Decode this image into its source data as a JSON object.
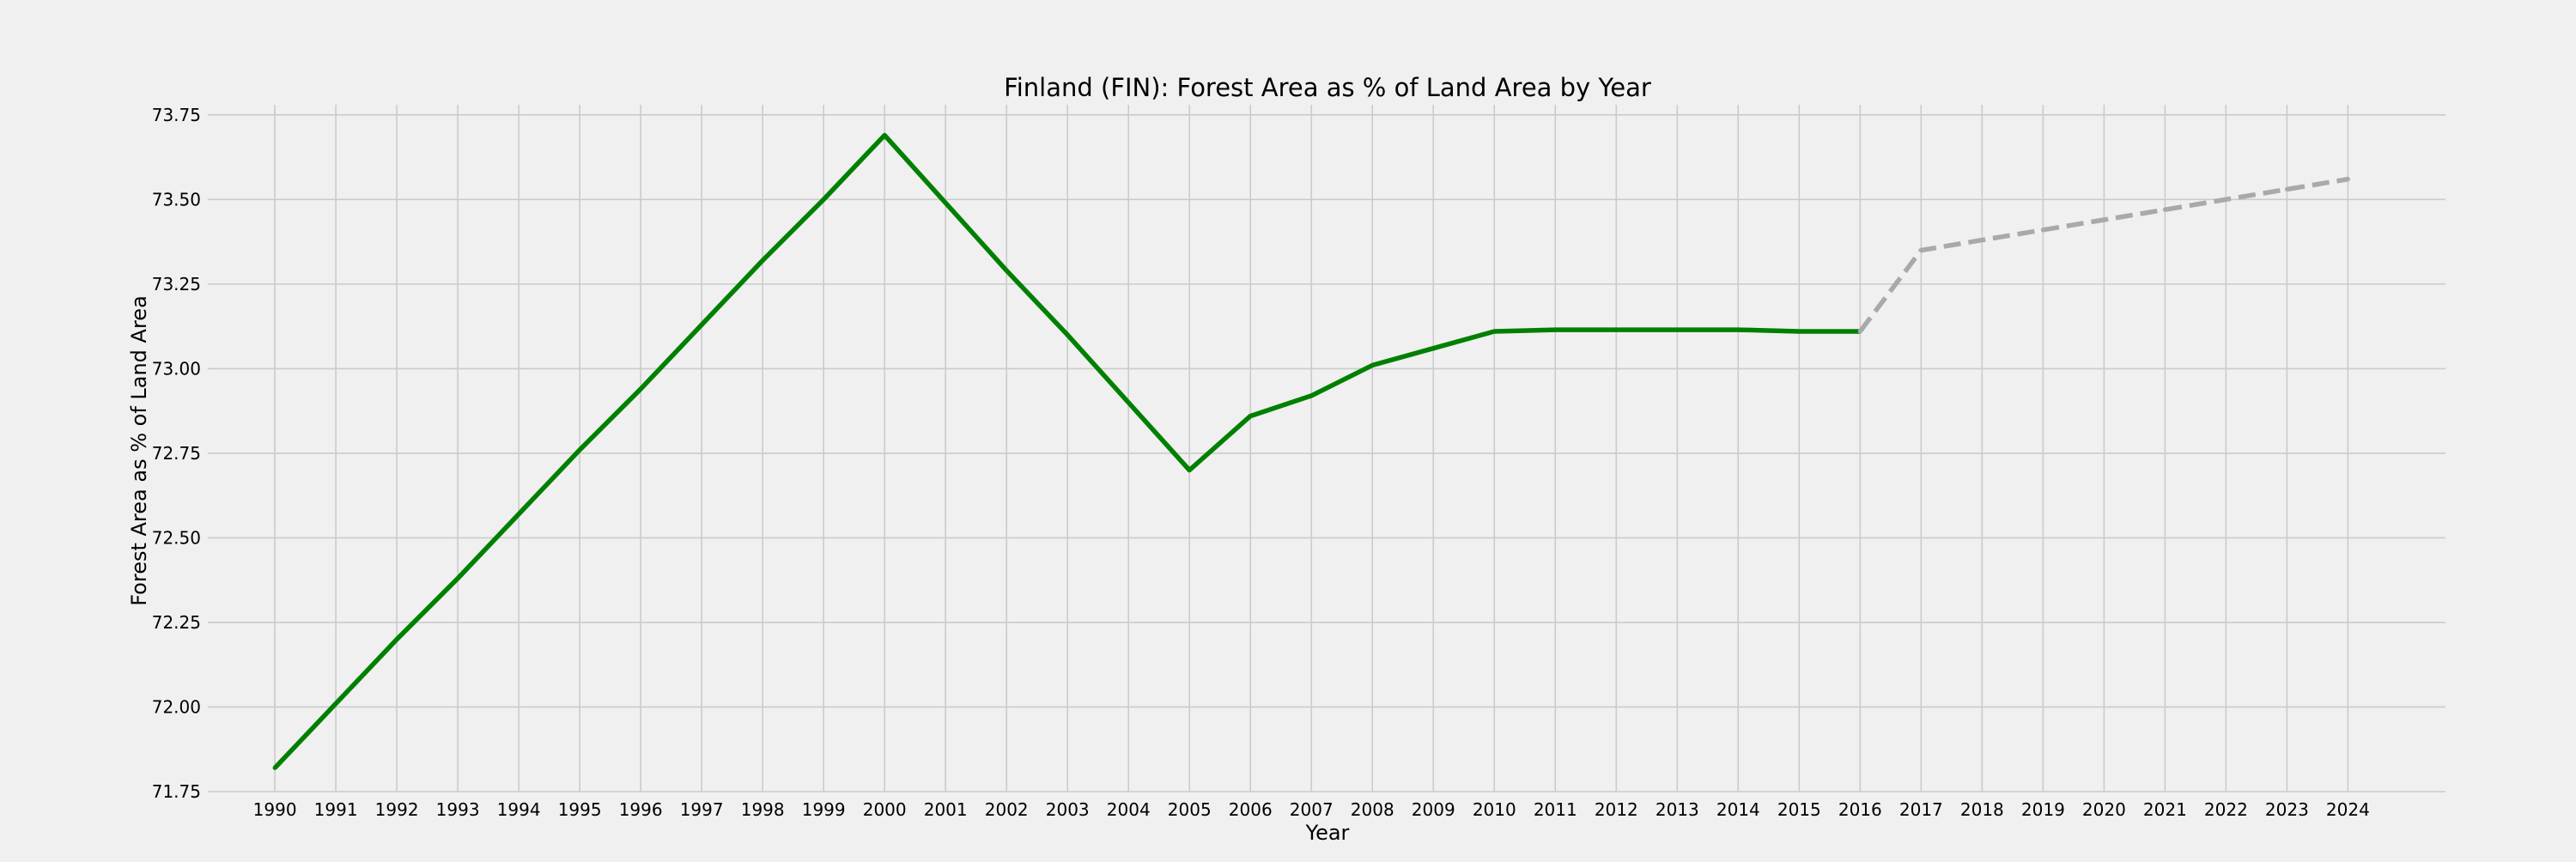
{
  "chart_data": {
    "type": "line",
    "title": "Finland (FIN): Forest Area as % of Land Area by Year",
    "xlabel": "Year",
    "ylabel": "Forest Area as % of Land Area",
    "x": [
      1990,
      1991,
      1992,
      1993,
      1994,
      1995,
      1996,
      1997,
      1998,
      1999,
      2000,
      2001,
      2002,
      2003,
      2004,
      2005,
      2006,
      2007,
      2008,
      2009,
      2010,
      2011,
      2012,
      2013,
      2014,
      2015,
      2016,
      2017,
      2018,
      2019,
      2020,
      2021,
      2022,
      2023,
      2024
    ],
    "xlim": [
      1988.9,
      2025.6
    ],
    "ylim": [
      71.75,
      73.78
    ],
    "yticks": [
      "71.75",
      "72.00",
      "72.25",
      "72.50",
      "72.75",
      "73.00",
      "73.25",
      "73.50",
      "73.75"
    ],
    "grid": true,
    "series": [
      {
        "kind": "observed",
        "color": "#008000",
        "style": "solid",
        "x": [
          1990,
          1991,
          1992,
          1993,
          1994,
          1995,
          1996,
          1997,
          1998,
          1999,
          2000,
          2001,
          2002,
          2003,
          2004,
          2005,
          2006,
          2007,
          2008,
          2009,
          2010,
          2011,
          2012,
          2013,
          2014,
          2015,
          2016
        ],
        "values": [
          71.82,
          72.01,
          72.2,
          72.38,
          72.57,
          72.76,
          72.94,
          73.13,
          73.32,
          73.5,
          73.69,
          73.49,
          73.29,
          73.1,
          72.9,
          72.7,
          72.86,
          72.92,
          73.01,
          73.06,
          73.11,
          73.115,
          73.115,
          73.115,
          73.115,
          73.11,
          73.11
        ]
      },
      {
        "kind": "projection",
        "color": "#a9a9a9",
        "style": "dashed",
        "x": [
          2016,
          2017,
          2018,
          2019,
          2020,
          2021,
          2022,
          2023,
          2024
        ],
        "values": [
          73.11,
          73.35,
          73.38,
          73.41,
          73.44,
          73.47,
          73.5,
          73.53,
          73.56
        ]
      }
    ]
  }
}
